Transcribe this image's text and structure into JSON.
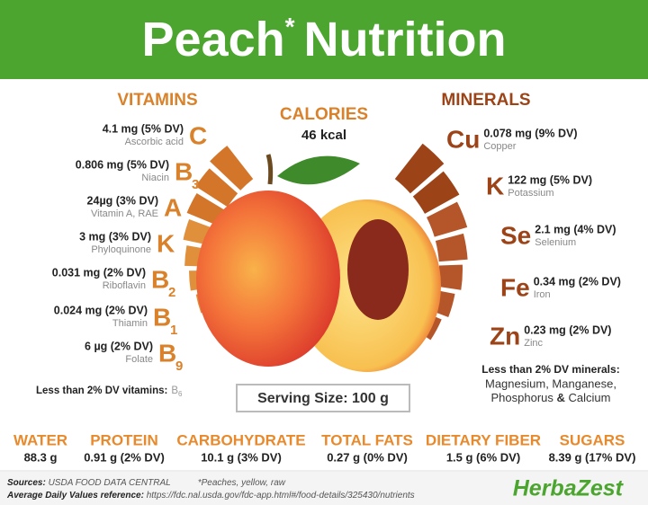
{
  "header": {
    "title": "Peach",
    "mark": "*",
    "title_rest": "Nutrition"
  },
  "calories": {
    "label": "CALORIES",
    "value": "46 kcal"
  },
  "vitamins": {
    "heading": "VITAMINS",
    "items": [
      {
        "amount": "4.1 mg (5% DV)",
        "name": "Ascorbic acid",
        "letter": "C"
      },
      {
        "amount": "0.806 mg (5% DV)",
        "name": "Niacin",
        "letter": "B",
        "sub": "3"
      },
      {
        "amount": "24µg (3% DV)",
        "name": "Vitamin A, RAE",
        "letter": "A"
      },
      {
        "amount": "3 mg (3% DV)",
        "name": "Phyloquinone",
        "letter": "K"
      },
      {
        "amount": "0.031 mg (2% DV)",
        "name": "Riboflavin",
        "letter": "B",
        "sub": "2"
      },
      {
        "amount": "0.024 mg (2% DV)",
        "name": "Thiamin",
        "letter": "B",
        "sub": "1"
      },
      {
        "amount": "6 µg (2% DV)",
        "name": "Folate",
        "letter": "B",
        "sub": "9"
      }
    ],
    "note": "Less than 2% DV vitamins:",
    "note_letter": "B",
    "note_sub": "6"
  },
  "minerals": {
    "heading": "MINERALS",
    "items": [
      {
        "symbol": "Cu",
        "amount": "0.078 mg (9% DV)",
        "name": "Copper"
      },
      {
        "symbol": "K",
        "amount": "122 mg (5% DV)",
        "name": "Potassium"
      },
      {
        "symbol": "Se",
        "amount": "2.1 mg (4% DV)",
        "name": "Selenium"
      },
      {
        "symbol": "Fe",
        "amount": "0.34 mg (2% DV)",
        "name": "Iron"
      },
      {
        "symbol": "Zn",
        "amount": "0.23 mg (2% DV)",
        "name": "Zinc"
      }
    ],
    "note": "Less than 2% DV minerals:",
    "note_line1": "Magnesium, Manganese,",
    "note_line2a": "Phosphorus",
    "note_amp": "&",
    "note_line2b": "Calcium"
  },
  "serving": "Serving Size: 100 g",
  "macros": [
    {
      "label": "WATER",
      "value": "88.3 g"
    },
    {
      "label": "PROTEIN",
      "value": "0.91 g (2% DV)"
    },
    {
      "label": "CARBOHYDRATE",
      "value": "10.1 g (3% DV)"
    },
    {
      "label": "TOTAL FATS",
      "value": "0.27 g (0% DV)"
    },
    {
      "label": "DIETARY FIBER",
      "value": "1.5 g (6% DV)"
    },
    {
      "label": "SUGARS",
      "value": "8.39 g (17% DV)"
    }
  ],
  "footer": {
    "sources_label": "Sources:",
    "sources": "USDA FOOD DATA CENTRAL",
    "sources_note": "*Peaches, yellow, raw",
    "reference_label": "Average Daily Values reference:",
    "reference": "https://fdc.nal.usda.gov/fdc-app.html#/food-details/325430/nutrients",
    "brand": "HerbaZest"
  }
}
